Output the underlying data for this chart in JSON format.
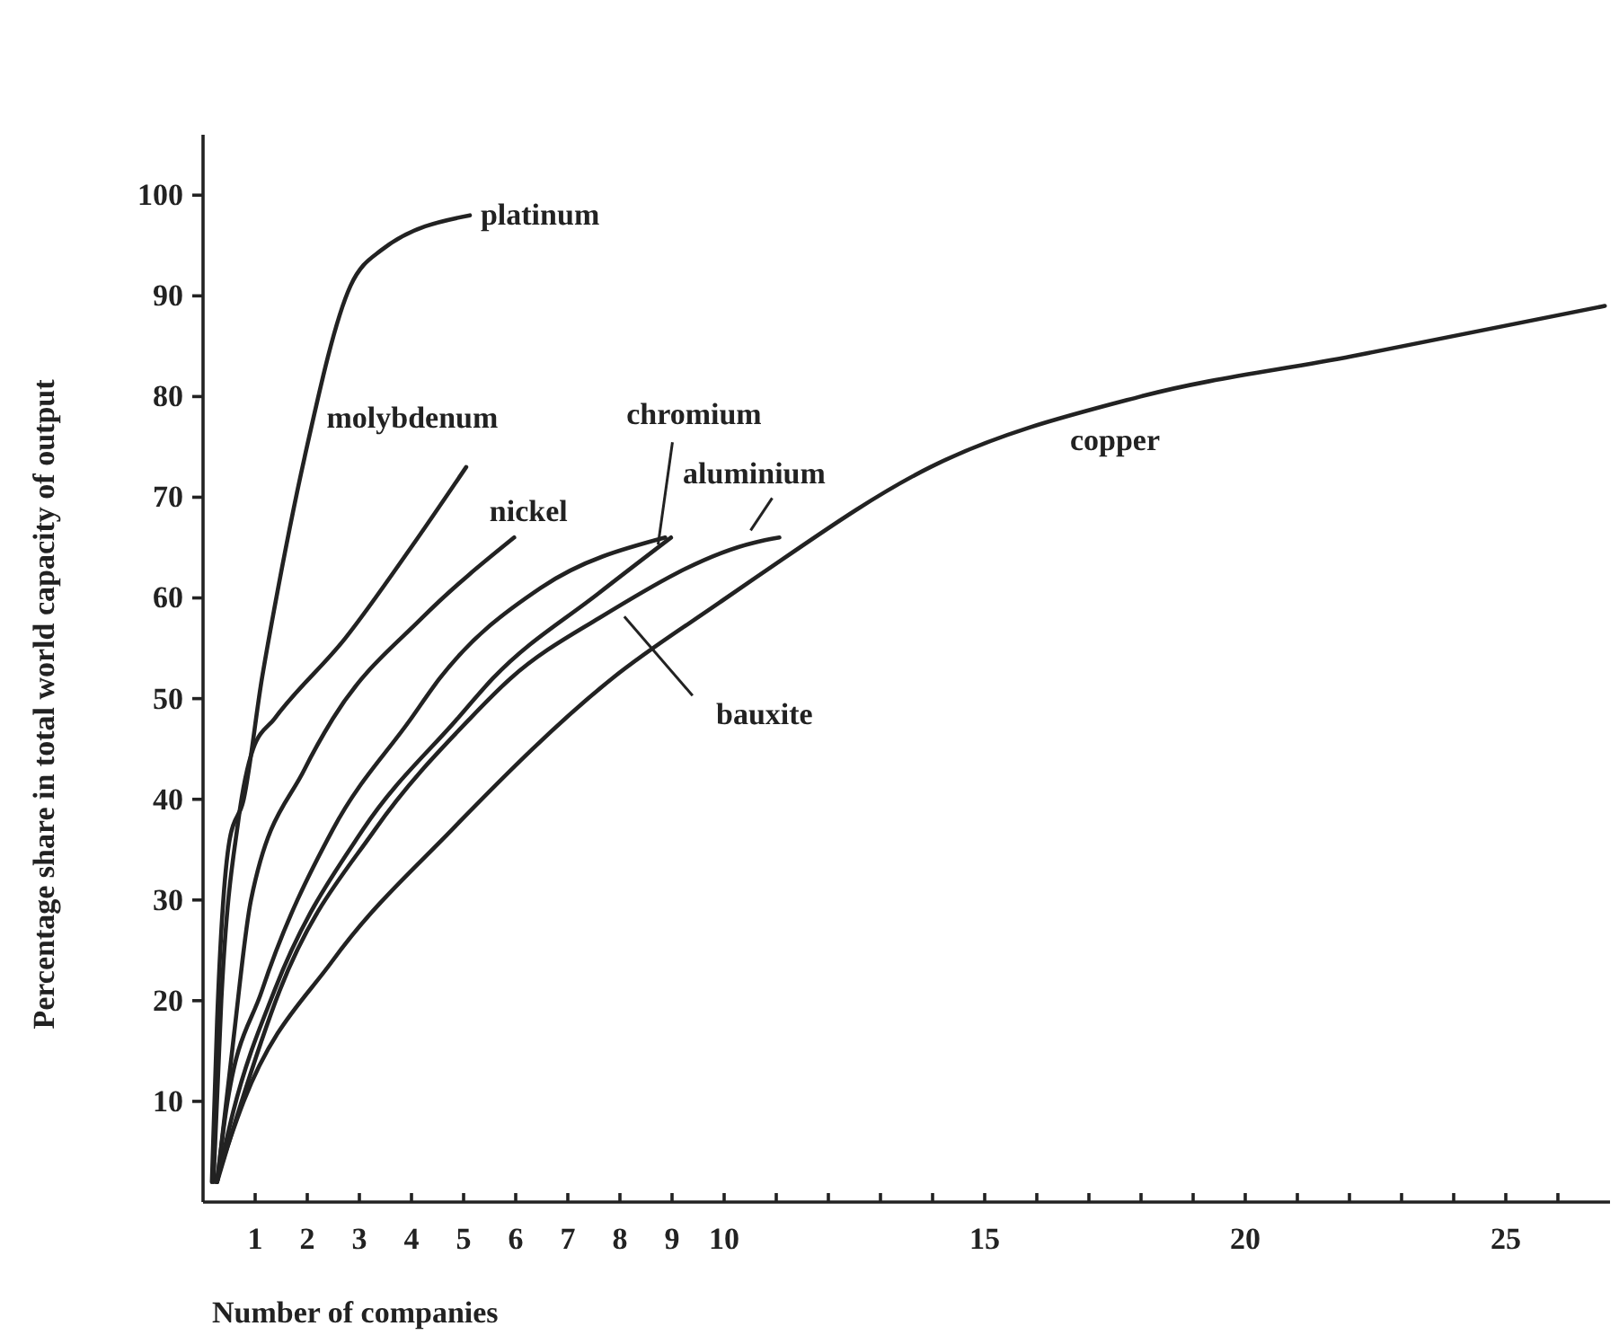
{
  "chart_data": {
    "type": "line",
    "xlabel": "Number of companies",
    "ylabel": "Percentage share in total world capacity of output",
    "xlim": [
      0,
      27
    ],
    "ylim": [
      0,
      106
    ],
    "xticks": [
      1,
      2,
      3,
      4,
      5,
      6,
      7,
      8,
      9,
      10,
      {
        "value": 11,
        "label": null
      },
      {
        "value": 12,
        "label": null
      },
      {
        "value": 13,
        "label": null
      },
      {
        "value": 14,
        "label": null
      },
      15,
      {
        "value": 16,
        "label": null
      },
      {
        "value": 17,
        "label": null
      },
      {
        "value": 18,
        "label": null
      },
      {
        "value": 19,
        "label": null
      },
      20,
      {
        "value": 21,
        "label": null
      },
      {
        "value": 22,
        "label": null
      },
      {
        "value": 23,
        "label": null
      },
      {
        "value": 24,
        "label": null
      },
      25,
      {
        "value": 26,
        "label": null
      }
    ],
    "yticks": [
      10,
      20,
      30,
      40,
      50,
      60,
      70,
      80,
      90,
      100
    ],
    "grid": false,
    "legend": false,
    "marker": "none",
    "line_style": "solid",
    "series": [
      {
        "name": "platinum",
        "color": "#222222",
        "x": [
          0.17,
          0.27,
          0.51,
          0.78,
          1.13,
          1.37,
          1.95,
          2.83,
          3.41,
          5.12
        ],
        "values": [
          2,
          18,
          36,
          40,
          52,
          59,
          74,
          91,
          94.5,
          98
        ]
      },
      {
        "name": "molybdenum",
        "color": "#222222",
        "x": [
          0.2,
          0.35,
          0.68,
          0.96,
          1.37,
          2.73,
          3.99,
          5.05
        ],
        "values": [
          2,
          20,
          38,
          45,
          48,
          56,
          65,
          73
        ]
      },
      {
        "name": "nickel",
        "color": "#222222",
        "x": [
          0.27,
          0.58,
          0.92,
          1.95,
          2.49,
          4.2,
          5.97
        ],
        "values": [
          2,
          16,
          30,
          43,
          48,
          58,
          66
        ]
      },
      {
        "name": "chromium",
        "color": "#222222",
        "x": [
          0.27,
          0.44,
          1.13,
          2.49,
          3.99,
          4.54,
          6.48,
          8.87
        ],
        "values": [
          2,
          9,
          21,
          37,
          48,
          52,
          61,
          66
        ]
      },
      {
        "name": "bauxite",
        "color": "#222222",
        "x": [
          0.27,
          0.58,
          1.37,
          3.07,
          4.88,
          5.56,
          7.6,
          8.98
        ],
        "values": [
          2,
          9,
          21,
          37,
          48,
          52,
          60.5,
          66
        ]
      },
      {
        "name": "aluminium",
        "color": "#222222",
        "x": [
          0.27,
          0.68,
          1.47,
          3.3,
          5.12,
          5.9,
          7.6,
          10.58,
          11.06
        ],
        "values": [
          2,
          9,
          21,
          37,
          48,
          52,
          58,
          65.5,
          66
        ]
      },
      {
        "name": "copper",
        "color": "#222222",
        "x": [
          0.24,
          0.78,
          2.49,
          4.78,
          7.85,
          9.9,
          10.6,
          13.96,
          17.99,
          22.05,
          26.9
        ],
        "values": [
          2,
          10,
          24,
          37,
          52,
          59.5,
          62,
          73,
          80,
          84,
          89
        ]
      }
    ]
  }
}
